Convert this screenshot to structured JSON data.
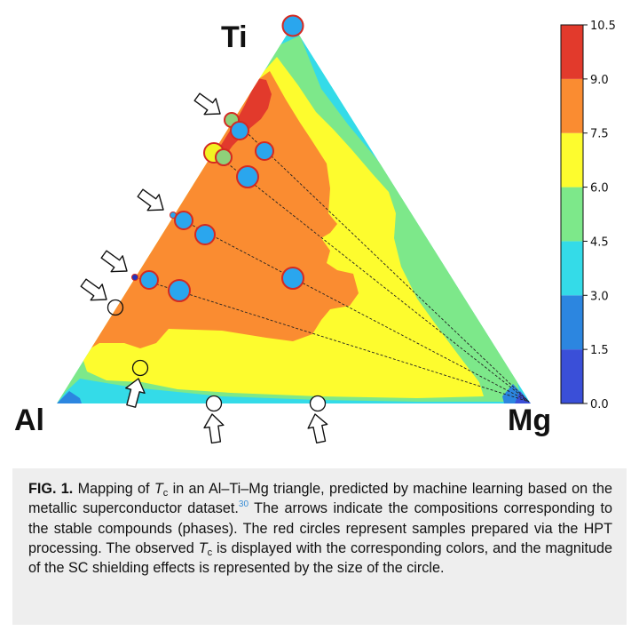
{
  "vertex_labels": {
    "top": "Ti",
    "left": "Al",
    "right": "Mg"
  },
  "colorbar": {
    "ticks": [
      "0.0",
      "1.5",
      "3.0",
      "4.5",
      "6.0",
      "7.5",
      "9.0",
      "10.5"
    ],
    "colors": [
      "#3a4fd8",
      "#2c86e0",
      "#34dbe8",
      "#7de88a",
      "#fdfc2e",
      "#fa8c31",
      "#e23a2c"
    ]
  },
  "caption": {
    "label": "FIG. 1.",
    "part1": " Mapping of ",
    "tc_symbol": "T",
    "tc_subscript": "c",
    "part2": " in an Al–Ti–Mg triangle, predicted by machine learning based on the metallic superconductor dataset.",
    "ref": "30",
    "part3": " The arrows indicate the compositions corresponding to the stable compounds (phases). The red circles represent samples prepared via the HPT processing. The observed ",
    "part4": " is displayed with the corresponding colors, and the magnitude of the SC shielding effects is represented by the size of the circle."
  },
  "chart_data": {
    "type": "ternary-contour",
    "axes": [
      "Al",
      "Ti",
      "Mg"
    ],
    "colorbar_label": "",
    "colorbar_range": [
      0.0,
      10.5
    ],
    "colorbar_ticks": [
      0.0,
      1.5,
      3.0,
      4.5,
      6.0,
      7.5,
      9.0,
      10.5
    ],
    "tc_bands": [
      {
        "range": [
          0.0,
          1.5
        ],
        "color": "#3a4fd8"
      },
      {
        "range": [
          1.5,
          3.0
        ],
        "color": "#2c86e0"
      },
      {
        "range": [
          3.0,
          4.5
        ],
        "color": "#34dbe8"
      },
      {
        "range": [
          4.5,
          6.0
        ],
        "color": "#7de88a"
      },
      {
        "range": [
          6.0,
          7.5
        ],
        "color": "#fdfc2e"
      },
      {
        "range": [
          7.5,
          9.0
        ],
        "color": "#fa8c31"
      },
      {
        "range": [
          9.0,
          10.5
        ],
        "color": "#e23a2c"
      }
    ]
  }
}
